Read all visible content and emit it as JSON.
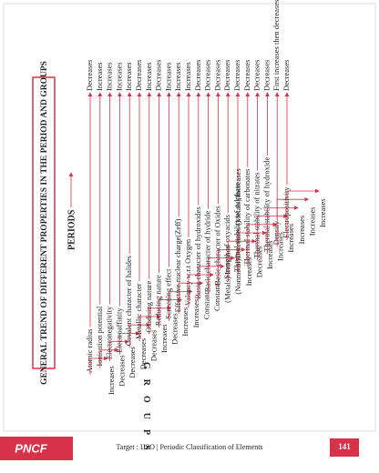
{
  "header": {
    "title": "GENERAL TREND OF DIFFERENT PROPERTIES IN THE PERIOD AND GROUPS",
    "periods": "PERIODS",
    "groups": "GROUPS"
  },
  "items": [
    {
      "property": "Atomic radius",
      "period": "Decreases",
      "group": "Increases"
    },
    {
      "property": "Ionisation potential",
      "period": "Increases",
      "group": "Decreases"
    },
    {
      "property": "Electronegativity",
      "period": "Increases",
      "group": "Decreases"
    },
    {
      "property": "Electroaffinity",
      "period": "Increases",
      "group": "Decreases"
    },
    {
      "property": "Covalent character of halides",
      "period": "Increases",
      "group": "Decreases"
    },
    {
      "property": "Metallic character",
      "period": "Decreases",
      "group": "Increases"
    },
    {
      "property": "Oxidising nature",
      "period": "Increases",
      "group": "Decreases"
    },
    {
      "property": "Reducing nature",
      "period": "Decreases",
      "group": "Increases"
    },
    {
      "property": "Screening effect",
      "period": "Increases",
      "group": "Increases"
    },
    {
      "property": "Effective nuclear charge(Zeff)",
      "period": "Increases",
      "group": "Constant"
    },
    {
      "property": "Valency w.r.t Oxygen",
      "period": "Increases",
      "group": "Constant"
    },
    {
      "property": "Basic character of hydroxides",
      "period": "Decreases",
      "group": "(Metals) Increases"
    },
    {
      "property": "Basic character of hydride",
      "period": "Decreases",
      "group": "(Nonmetal)Decreases (Metals) Increases"
    },
    {
      "property": "Basic character of Oxides",
      "period": "Decreases",
      "group": "Increases"
    },
    {
      "property": "Strength of oxyacids",
      "period": "Decreases",
      "group": "Decreases"
    },
    {
      "property": "Thermal stability of sulphate",
      "period": "Decreases",
      "group": "Increases"
    },
    {
      "property": "Thermal stability of carbonates",
      "period": "Decreases",
      "group": "Increases"
    },
    {
      "property": "Thermal stability of nitrates",
      "period": "Decreases",
      "group": "Increases"
    },
    {
      "property": "Thermal stability of hydroxide",
      "period": "Decreases",
      "group": "Increases"
    },
    {
      "property": "Density",
      "period": "First increases then decreases",
      "group": "Increases"
    },
    {
      "property": "Electropositivity",
      "period": "Decreases",
      "group": "Increases"
    }
  ],
  "footer": {
    "brand": "PNCF",
    "text": "Target : IJSO | Periodic Classification of Elements",
    "page": "141"
  }
}
